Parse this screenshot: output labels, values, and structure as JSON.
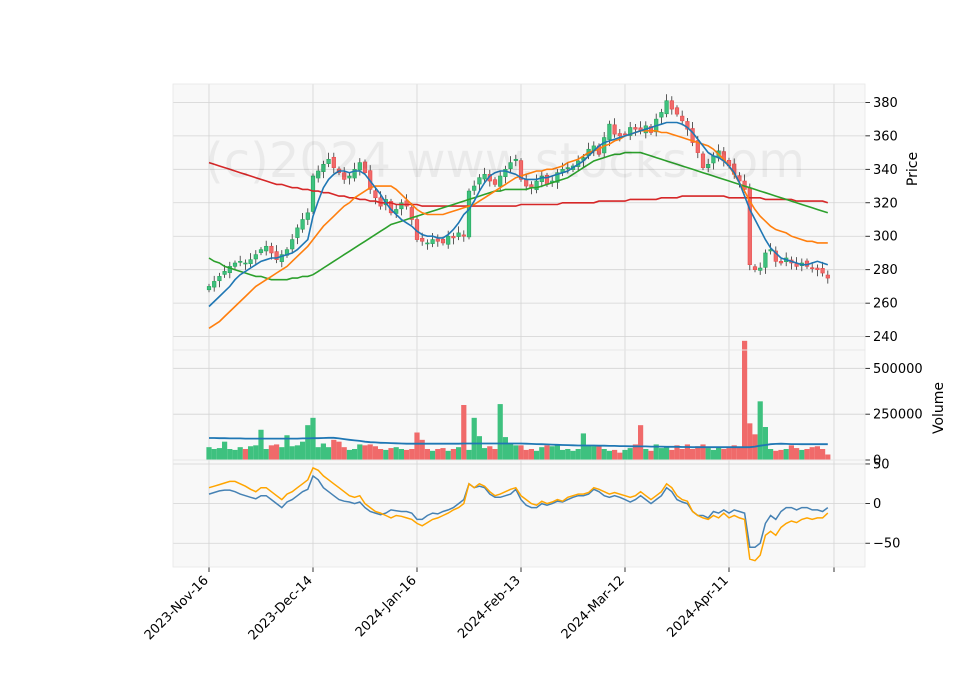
{
  "chart_data": {
    "type": "candlestick",
    "watermark": "(c)2024 www.stocks.com",
    "colors": {
      "up": "#26a65b",
      "down": "#e84a4a",
      "up_fill": "#3ec17f",
      "down_fill": "#f06a6a",
      "ma_short": "#1f77b4",
      "ma_mid": "#ff7f0e",
      "ma_long": "#2ca02c",
      "ma_longest": "#d62728",
      "osc_1": "#4682b4",
      "osc_2": "#ffa500",
      "panel_bg": "#f8f8f8",
      "grid": "#d3d3d3"
    },
    "x_ticks": [
      "2023-Nov-16",
      "2023-Dec-14",
      "2024-Jan-16",
      "2024-Feb-13",
      "2024-Mar-12",
      "2024-Apr-11"
    ],
    "x_tick_index": [
      0,
      20,
      40,
      60,
      80,
      100
    ],
    "price_panel": {
      "ylabel": "Price",
      "ylim": [
        232,
        391
      ],
      "yticks": [
        240,
        260,
        280,
        300,
        320,
        340,
        360,
        380
      ],
      "closes": [
        270,
        273,
        276,
        279,
        282,
        284,
        285,
        284,
        286,
        289,
        292,
        294,
        290,
        286,
        289,
        292,
        298,
        305,
        310,
        314,
        336,
        339,
        343,
        346,
        341,
        338,
        334,
        336,
        340,
        344,
        338,
        328,
        323,
        318,
        322,
        314,
        316,
        320,
        318,
        310,
        298,
        297,
        296,
        298,
        297,
        296,
        300,
        299,
        302,
        300,
        327,
        330,
        335,
        337,
        333,
        331,
        336,
        340,
        344,
        346,
        334,
        330,
        329,
        333,
        336,
        331,
        333,
        338,
        340,
        341,
        342,
        345,
        347,
        352,
        354,
        349,
        359,
        367,
        361,
        360,
        361,
        365,
        364,
        363,
        366,
        362,
        370,
        374,
        381,
        376,
        373,
        369,
        364,
        356,
        350,
        341,
        343,
        348,
        351,
        345,
        342,
        337,
        333,
        328,
        283,
        280,
        281,
        290,
        292,
        285,
        284,
        287,
        284,
        282,
        284,
        282,
        281,
        280,
        278,
        275
      ],
      "ma_short": [
        258,
        261,
        264,
        267,
        270,
        274,
        277,
        279,
        281,
        283,
        285,
        286,
        287,
        287,
        288,
        289,
        290,
        292,
        295,
        298,
        312,
        321,
        329,
        334,
        337,
        339,
        339,
        338,
        339,
        339,
        337,
        333,
        329,
        325,
        320,
        316,
        313,
        310,
        308,
        306,
        303,
        301,
        300,
        300,
        299,
        299,
        301,
        304,
        308,
        313,
        316,
        321,
        327,
        332,
        336,
        338,
        339,
        339,
        338,
        337,
        335,
        334,
        334,
        334,
        335,
        335,
        336,
        337,
        338,
        339,
        341,
        343,
        345,
        348,
        351,
        354,
        356,
        357,
        358,
        359,
        360,
        361,
        362,
        363,
        364,
        365,
        366,
        367,
        368,
        368,
        368,
        367,
        365,
        362,
        358,
        354,
        350,
        348,
        347,
        345,
        342,
        338,
        332,
        324,
        316,
        310,
        304,
        298,
        293,
        290,
        287,
        286,
        285,
        284,
        283,
        283,
        284,
        285,
        284,
        283
      ],
      "ma_mid": [
        245,
        247,
        249,
        252,
        255,
        258,
        261,
        264,
        267,
        270,
        272,
        274,
        276,
        278,
        280,
        282,
        285,
        288,
        291,
        294,
        298,
        302,
        306,
        309,
        312,
        315,
        318,
        320,
        323,
        325,
        327,
        329,
        330,
        330,
        330,
        330,
        328,
        325,
        322,
        319,
        316,
        314,
        313,
        313,
        313,
        313,
        314,
        315,
        316,
        317,
        318,
        319,
        321,
        323,
        325,
        327,
        329,
        331,
        333,
        335,
        336,
        337,
        338,
        339,
        339,
        340,
        340,
        341,
        342,
        344,
        345,
        346,
        348,
        350,
        351,
        352,
        354,
        355,
        357,
        358,
        360,
        361,
        362,
        363,
        363,
        363,
        363,
        362,
        362,
        361,
        360,
        359,
        358,
        357,
        356,
        355,
        354,
        352,
        349,
        346,
        342,
        337,
        332,
        327,
        321,
        316,
        312,
        309,
        306,
        304,
        303,
        302,
        300,
        299,
        298,
        297,
        297,
        296,
        296,
        296
      ],
      "ma_long": [
        287,
        285,
        284,
        282,
        281,
        280,
        279,
        278,
        277,
        276,
        276,
        275,
        274,
        274,
        274,
        274,
        275,
        275,
        276,
        276,
        277,
        279,
        281,
        283,
        285,
        287,
        289,
        291,
        293,
        295,
        297,
        299,
        301,
        303,
        305,
        307,
        308,
        309,
        310,
        311,
        312,
        313,
        314,
        315,
        316,
        317,
        318,
        319,
        320,
        321,
        322,
        323,
        324,
        325,
        326,
        327,
        327,
        328,
        328,
        328,
        328,
        328,
        329,
        329,
        330,
        331,
        332,
        333,
        334,
        335,
        337,
        339,
        341,
        343,
        345,
        346,
        347,
        348,
        349,
        349,
        350,
        350,
        350,
        350,
        349,
        348,
        347,
        346,
        345,
        344,
        343,
        342,
        341,
        340,
        339,
        338,
        337,
        336,
        335,
        334,
        333,
        332,
        331,
        330,
        329,
        328,
        327,
        326,
        325,
        324,
        323,
        322,
        321,
        320,
        319,
        318,
        317,
        316,
        315,
        314
      ],
      "ma_longest": [
        344,
        343,
        342,
        341,
        340,
        339,
        338,
        337,
        336,
        335,
        334,
        333,
        332,
        331,
        331,
        330,
        329,
        329,
        328,
        328,
        327,
        327,
        326,
        326,
        325,
        324,
        324,
        323,
        323,
        322,
        322,
        321,
        321,
        320,
        320,
        320,
        319,
        319,
        319,
        319,
        319,
        318,
        318,
        318,
        318,
        318,
        318,
        318,
        318,
        318,
        318,
        318,
        318,
        318,
        318,
        318,
        318,
        318,
        318,
        318,
        319,
        319,
        319,
        319,
        319,
        319,
        319,
        319,
        320,
        320,
        320,
        320,
        320,
        320,
        320,
        321,
        321,
        321,
        321,
        321,
        321,
        322,
        322,
        322,
        322,
        322,
        322,
        323,
        323,
        323,
        323,
        324,
        324,
        324,
        324,
        324,
        324,
        324,
        324,
        324,
        323,
        323,
        323,
        323,
        323,
        323,
        323,
        322,
        322,
        322,
        322,
        322,
        322,
        321,
        321,
        321,
        321,
        321,
        321,
        320
      ]
    },
    "volume_panel": {
      "ylabel": "Volume",
      "ylim": [
        0,
        600000
      ],
      "yticks": [
        0,
        250000,
        500000
      ],
      "ytick_labels": [
        "0",
        "250000",
        "500000"
      ],
      "values": [
        70000,
        60000,
        65000,
        100000,
        60000,
        55000,
        70000,
        60000,
        75000,
        80000,
        165000,
        60000,
        80000,
        85000,
        70000,
        135000,
        75000,
        80000,
        100000,
        190000,
        230000,
        70000,
        90000,
        70000,
        110000,
        100000,
        70000,
        55000,
        60000,
        85000,
        80000,
        85000,
        75000,
        60000,
        55000,
        65000,
        70000,
        60000,
        55000,
        60000,
        150000,
        110000,
        60000,
        50000,
        60000,
        65000,
        50000,
        60000,
        70000,
        300000,
        55000,
        230000,
        130000,
        65000,
        75000,
        60000,
        305000,
        125000,
        90000,
        80000,
        80000,
        55000,
        60000,
        50000,
        70000,
        80000,
        75000,
        85000,
        55000,
        60000,
        50000,
        60000,
        145000,
        80000,
        75000,
        80000,
        60000,
        50000,
        55000,
        40000,
        55000,
        65000,
        85000,
        190000,
        60000,
        50000,
        85000,
        65000,
        70000,
        55000,
        80000,
        60000,
        85000,
        60000,
        75000,
        85000,
        65000,
        55000,
        70000,
        60000,
        65000,
        80000,
        70000,
        650000,
        200000,
        140000,
        320000,
        180000,
        60000,
        50000,
        55000,
        60000,
        80000,
        65000,
        55000,
        60000,
        70000,
        75000,
        60000,
        30000
      ],
      "avg": [
        120000,
        120000,
        119000,
        119000,
        118000,
        118000,
        118000,
        117000,
        117000,
        117000,
        117000,
        117000,
        117000,
        117000,
        117000,
        117000,
        117000,
        117000,
        118000,
        118000,
        119000,
        119000,
        120000,
        121000,
        121000,
        118000,
        114000,
        110000,
        107000,
        104000,
        100000,
        97000,
        96000,
        94000,
        93000,
        92000,
        91000,
        90000,
        89000,
        89000,
        89000,
        89000,
        89000,
        89000,
        89000,
        89000,
        89000,
        89000,
        89000,
        90000,
        90000,
        90000,
        90000,
        90000,
        90000,
        90000,
        90000,
        90000,
        90000,
        90000,
        90000,
        89000,
        88000,
        87000,
        86000,
        85000,
        84000,
        83000,
        82000,
        81000,
        80000,
        79000,
        79000,
        79000,
        79000,
        78000,
        78000,
        77000,
        77000,
        76000,
        76000,
        75000,
        75000,
        74000,
        74000,
        73000,
        73000,
        73000,
        72000,
        72000,
        72000,
        71000,
        71000,
        70000,
        70000,
        70000,
        70000,
        70000,
        70000,
        70000,
        70000,
        70000,
        70000,
        70000,
        70000,
        73000,
        78000,
        82000,
        86000,
        88000,
        89000,
        88000,
        87000,
        87000,
        86000,
        86000,
        86000,
        86000,
        86000,
        86000
      ]
    },
    "oscillator_panel": {
      "ylim": [
        -80,
        55
      ],
      "yticks": [
        -50,
        0,
        50
      ],
      "ytick_labels": [
        "−50",
        "0",
        "50"
      ],
      "series_1": [
        12,
        14,
        16,
        17,
        17,
        15,
        12,
        10,
        8,
        6,
        10,
        10,
        5,
        0,
        -5,
        2,
        5,
        10,
        15,
        18,
        35,
        30,
        20,
        15,
        10,
        5,
        3,
        2,
        0,
        2,
        -5,
        -10,
        -12,
        -14,
        -12,
        -8,
        -9,
        -10,
        -10,
        -12,
        -20,
        -20,
        -15,
        -12,
        -13,
        -10,
        -8,
        -5,
        0,
        5,
        25,
        20,
        22,
        20,
        12,
        8,
        8,
        10,
        12,
        18,
        5,
        -2,
        -5,
        -5,
        0,
        -2,
        0,
        3,
        2,
        5,
        8,
        10,
        10,
        12,
        18,
        15,
        10,
        8,
        10,
        8,
        5,
        2,
        5,
        10,
        5,
        0,
        5,
        10,
        20,
        15,
        5,
        2,
        0,
        -10,
        -15,
        -15,
        -18,
        -10,
        -12,
        -8,
        -12,
        -8,
        -10,
        -12,
        -55,
        -55,
        -50,
        -25,
        -15,
        -20,
        -10,
        -5,
        -5,
        -8,
        -5,
        -5,
        -8,
        -8,
        -10,
        -5
      ],
      "series_2": [
        20,
        22,
        24,
        26,
        28,
        28,
        25,
        22,
        18,
        15,
        20,
        20,
        15,
        10,
        5,
        12,
        15,
        20,
        25,
        30,
        45,
        42,
        35,
        30,
        25,
        20,
        15,
        10,
        8,
        10,
        0,
        -5,
        -10,
        -12,
        -15,
        -18,
        -15,
        -16,
        -18,
        -20,
        -25,
        -28,
        -24,
        -20,
        -18,
        -15,
        -12,
        -8,
        -5,
        0,
        25,
        20,
        25,
        22,
        15,
        10,
        12,
        15,
        18,
        20,
        10,
        5,
        0,
        -2,
        3,
        0,
        2,
        5,
        3,
        8,
        10,
        12,
        12,
        14,
        20,
        18,
        15,
        12,
        14,
        12,
        10,
        8,
        10,
        15,
        10,
        5,
        10,
        15,
        25,
        20,
        10,
        5,
        3,
        -10,
        -15,
        -18,
        -20,
        -15,
        -18,
        -12,
        -18,
        -15,
        -18,
        -20,
        -70,
        -72,
        -65,
        -40,
        -35,
        -40,
        -30,
        -25,
        -22,
        -24,
        -20,
        -18,
        -20,
        -18,
        -18,
        -12
      ]
    }
  }
}
